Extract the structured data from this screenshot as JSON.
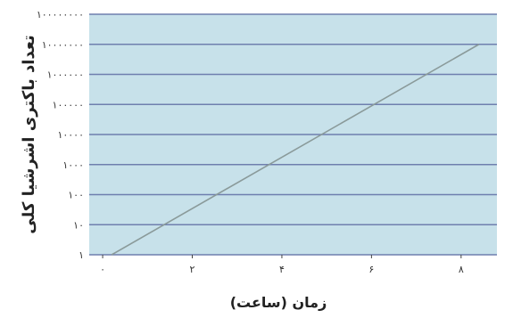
{
  "chart_data": {
    "type": "line",
    "xlabel": "زمان (ساعت)",
    "ylabel": "تعداد باکتری اشرشیا کلی",
    "y_scale": "log",
    "x_ticks": [
      "۰",
      "۲",
      "۴",
      "۶",
      "۸"
    ],
    "x_tick_values": [
      0,
      2,
      4,
      6,
      8
    ],
    "y_ticks": [
      "۱",
      "۱۰",
      "۱۰۰",
      "۱۰۰۰",
      "۱۰۰۰۰",
      "۱۰۰۰۰۰",
      "۱۰۰۰۰۰۰",
      "۱۰۰۰۰۰۰۰",
      "۱۰۰۰۰۰۰۰۰"
    ],
    "y_tick_values": [
      1,
      10,
      100,
      1000,
      10000,
      100000,
      1000000,
      10000000,
      100000000
    ],
    "xlim": [
      -0.3,
      8.8
    ],
    "ylim": [
      1,
      100000000
    ],
    "grid": true,
    "series": [
      {
        "x": [
          0.2,
          8.4
        ],
        "y": [
          1,
          10000000
        ],
        "color": "#8a9a9a"
      }
    ],
    "colors": {
      "plot_bg": "#c7e1ea",
      "grid": "#6f7fae",
      "axis": "#444444"
    }
  }
}
